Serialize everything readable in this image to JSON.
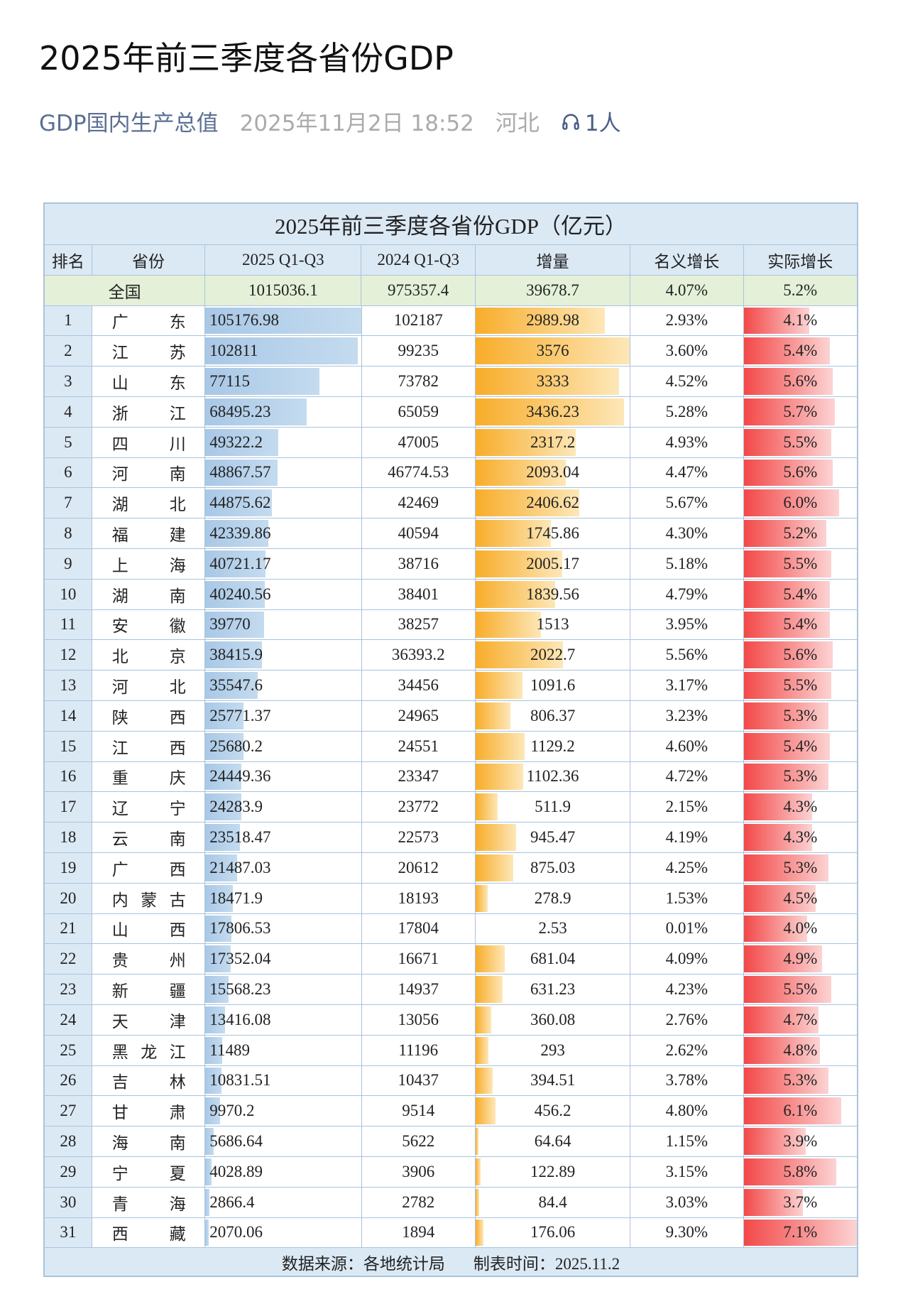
{
  "page": {
    "title": "2025年前三季度各省份GDP",
    "author": "GDP国内生产总值",
    "time": "2025年11月2日 18:52",
    "location": "河北",
    "listeners": "1人",
    "listen_icon": "headphones-icon"
  },
  "colors": {
    "gdp_bar": "#b7d1ea",
    "increase_bar": "#f9b53a",
    "real_growth_bar": "#f45b5b",
    "header_bg": "#dbe9f5",
    "national_bg": "#e4f0d8"
  },
  "table": {
    "title": "2025年前三季度各省份GDP（亿元）",
    "columns": [
      "排名",
      "省份",
      "2025 Q1-Q3",
      "2024 Q1-Q3",
      "增量",
      "名义增长",
      "实际增长"
    ],
    "national": {
      "name": "全国",
      "gdp2025": "1015036.1",
      "gdp2024": "975357.4",
      "increase": "39678.7",
      "nominal": "4.07%",
      "real": "5.2%"
    },
    "rows": [
      [
        "1",
        "广东",
        "105176.98",
        "102187",
        "2989.98",
        "2.93%",
        "4.1%"
      ],
      [
        "2",
        "江苏",
        "102811",
        "99235",
        "3576",
        "3.60%",
        "5.4%"
      ],
      [
        "3",
        "山东",
        "77115",
        "73782",
        "3333",
        "4.52%",
        "5.6%"
      ],
      [
        "4",
        "浙江",
        "68495.23",
        "65059",
        "3436.23",
        "5.28%",
        "5.7%"
      ],
      [
        "5",
        "四川",
        "49322.2",
        "47005",
        "2317.2",
        "4.93%",
        "5.5%"
      ],
      [
        "6",
        "河南",
        "48867.57",
        "46774.53",
        "2093.04",
        "4.47%",
        "5.6%"
      ],
      [
        "7",
        "湖北",
        "44875.62",
        "42469",
        "2406.62",
        "5.67%",
        "6.0%"
      ],
      [
        "8",
        "福建",
        "42339.86",
        "40594",
        "1745.86",
        "4.30%",
        "5.2%"
      ],
      [
        "9",
        "上海",
        "40721.17",
        "38716",
        "2005.17",
        "5.18%",
        "5.5%"
      ],
      [
        "10",
        "湖南",
        "40240.56",
        "38401",
        "1839.56",
        "4.79%",
        "5.4%"
      ],
      [
        "11",
        "安徽",
        "39770",
        "38257",
        "1513",
        "3.95%",
        "5.4%"
      ],
      [
        "12",
        "北京",
        "38415.9",
        "36393.2",
        "2022.7",
        "5.56%",
        "5.6%"
      ],
      [
        "13",
        "河北",
        "35547.6",
        "34456",
        "1091.6",
        "3.17%",
        "5.5%"
      ],
      [
        "14",
        "陕西",
        "25771.37",
        "24965",
        "806.37",
        "3.23%",
        "5.3%"
      ],
      [
        "15",
        "江西",
        "25680.2",
        "24551",
        "1129.2",
        "4.60%",
        "5.4%"
      ],
      [
        "16",
        "重庆",
        "24449.36",
        "23347",
        "1102.36",
        "4.72%",
        "5.3%"
      ],
      [
        "17",
        "辽宁",
        "24283.9",
        "23772",
        "511.9",
        "2.15%",
        "4.3%"
      ],
      [
        "18",
        "云南",
        "23518.47",
        "22573",
        "945.47",
        "4.19%",
        "4.3%"
      ],
      [
        "19",
        "广西",
        "21487.03",
        "20612",
        "875.03",
        "4.25%",
        "5.3%"
      ],
      [
        "20",
        "内蒙古",
        "18471.9",
        "18193",
        "278.9",
        "1.53%",
        "4.5%"
      ],
      [
        "21",
        "山西",
        "17806.53",
        "17804",
        "2.53",
        "0.01%",
        "4.0%"
      ],
      [
        "22",
        "贵州",
        "17352.04",
        "16671",
        "681.04",
        "4.09%",
        "4.9%"
      ],
      [
        "23",
        "新疆",
        "15568.23",
        "14937",
        "631.23",
        "4.23%",
        "5.5%"
      ],
      [
        "24",
        "天津",
        "13416.08",
        "13056",
        "360.08",
        "2.76%",
        "4.7%"
      ],
      [
        "25",
        "黑龙江",
        "11489",
        "11196",
        "293",
        "2.62%",
        "4.8%"
      ],
      [
        "26",
        "吉林",
        "10831.51",
        "10437",
        "394.51",
        "3.78%",
        "5.3%"
      ],
      [
        "27",
        "甘肃",
        "9970.2",
        "9514",
        "456.2",
        "4.80%",
        "6.1%"
      ],
      [
        "28",
        "海南",
        "5686.64",
        "5622",
        "64.64",
        "1.15%",
        "3.9%"
      ],
      [
        "29",
        "宁夏",
        "4028.89",
        "3906",
        "122.89",
        "3.15%",
        "5.8%"
      ],
      [
        "30",
        "青海",
        "2866.4",
        "2782",
        "84.4",
        "3.03%",
        "3.7%"
      ],
      [
        "31",
        "西藏",
        "2070.06",
        "1894",
        "176.06",
        "9.30%",
        "7.1%"
      ]
    ],
    "footer": {
      "source": "数据来源：各地统计局",
      "date": "制表时间：2025.11.2"
    }
  }
}
